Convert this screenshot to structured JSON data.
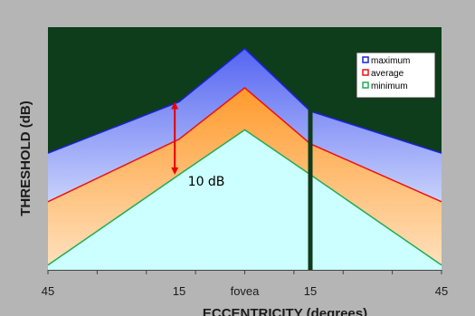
{
  "chart_data": {
    "type": "area",
    "xlabel": "ECCENTRICITY (degrees)",
    "ylabel": "THRESHOLD  (dB)",
    "categories": [
      "45",
      "15",
      "fovea",
      "15",
      "45"
    ],
    "x": [
      -45,
      -15,
      0,
      15,
      45
    ],
    "xlim": [
      -45,
      45
    ],
    "ylim": [
      0,
      260
    ],
    "grid": false,
    "legend_position": "top-right",
    "series": [
      {
        "name": "maximum",
        "values": [
          125,
          180,
          237,
          170,
          125
        ],
        "color": "#1a22dd"
      },
      {
        "name": "average",
        "values": [
          73,
          140,
          195,
          135,
          73
        ],
        "color": "#ee1111"
      },
      {
        "name": "minimum",
        "values": [
          5,
          102,
          150,
          102,
          5
        ],
        "color": "#22aa55"
      }
    ],
    "annotations": [
      {
        "text": "10 dB",
        "x": -13,
        "y": 90,
        "arrow_from": 180,
        "arrow_to": 102,
        "arrow_x": -16
      }
    ],
    "marker_line": {
      "x": 15
    },
    "colors": {
      "plot_background": "#0d3d1a",
      "outer_panel": "#b5b5b5",
      "band_maximum_top": "#5565f2",
      "band_maximum_bottom": "#c8d2fb",
      "band_average_top": "#ff9a2c",
      "band_average_bottom": "#ffe0bc",
      "fill_minimum": "#ccffff",
      "arrow": "#e80000",
      "marker_line": "#0f3a1b"
    }
  }
}
